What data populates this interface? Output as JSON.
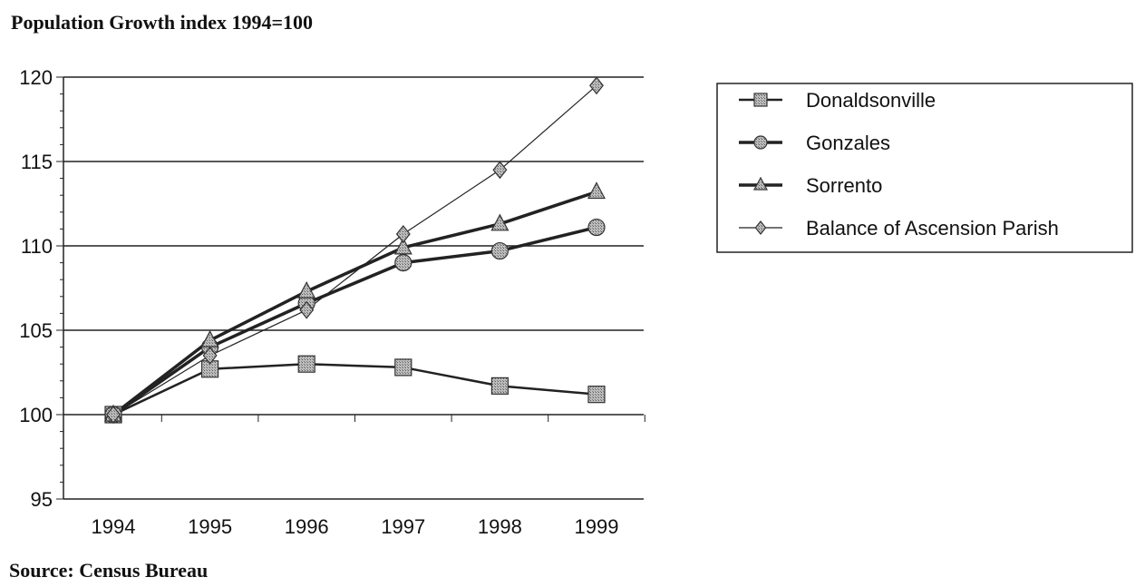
{
  "title": "Population Growth index 1994=100",
  "source": "Source: Census Bureau",
  "chart_data": {
    "type": "line",
    "title": "Population Growth index 1994=100",
    "xlabel": "",
    "ylabel": "",
    "x": [
      "1994",
      "1995",
      "1996",
      "1997",
      "1998",
      "1999"
    ],
    "ylim": [
      95,
      120
    ],
    "yticks": [
      95,
      100,
      105,
      110,
      115,
      120
    ],
    "grid": "horizontal",
    "legend_position": "right",
    "series": [
      {
        "name": "Donaldsonville",
        "marker": "square",
        "values": [
          100,
          102.7,
          103.0,
          102.8,
          101.7,
          101.2
        ]
      },
      {
        "name": "Gonzales",
        "marker": "circle",
        "values": [
          100,
          104.0,
          106.6,
          109.0,
          109.7,
          111.1
        ]
      },
      {
        "name": "Sorrento",
        "marker": "triangle",
        "values": [
          100,
          104.4,
          107.3,
          109.9,
          111.3,
          113.2
        ]
      },
      {
        "name": "Balance of Ascension Parish",
        "marker": "diamond",
        "values": [
          100,
          103.5,
          106.2,
          110.7,
          114.5,
          119.5
        ]
      }
    ]
  }
}
